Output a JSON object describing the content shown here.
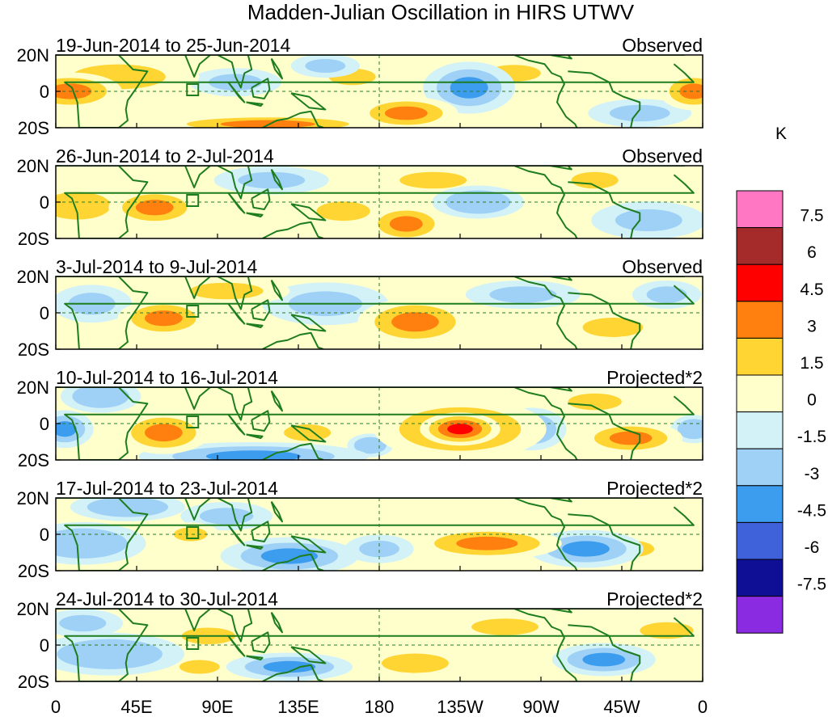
{
  "chart_data": {
    "type": "heatmap",
    "title": "Madden-Julian Oscillation in HIRS UTWV",
    "unit_label": "K",
    "x_ticks": [
      "0",
      "45E",
      "90E",
      "135E",
      "180",
      "135W",
      "90W",
      "45W",
      "0"
    ],
    "y_ticks": [
      "20N",
      "0",
      "20S"
    ],
    "xlim": [
      0,
      360
    ],
    "ylim": [
      -20,
      20
    ],
    "colorbar": {
      "labels": [
        "7.5",
        "6",
        "4.5",
        "3",
        "1.5",
        "0",
        "-1.5",
        "-3",
        "-4.5",
        "-6",
        "-7.5"
      ],
      "colors": [
        "#ff77c3",
        "#a52a2a",
        "#ff0000",
        "#ff7f0f",
        "#ffd533",
        "#ffffcc",
        "#d3f2f8",
        "#9fd1f7",
        "#3c9cee",
        "#3f62db",
        "#0f0f96",
        "#8a2be2"
      ]
    },
    "panels": [
      {
        "period": "19-Jun-2014 to 25-Jun-2014",
        "kind": "Observed",
        "blobs": [
          {
            "lon": 8,
            "lat": 0,
            "rx": 18,
            "ry": 8,
            "v": 4
          },
          {
            "lon": 35,
            "lat": 8,
            "rx": 28,
            "ry": 9,
            "v": 2.3
          },
          {
            "lon": 195,
            "lat": -12,
            "rx": 18,
            "ry": 7,
            "v": 4
          },
          {
            "lon": 118,
            "lat": -18,
            "rx": 40,
            "ry": 4,
            "v": 3.4
          },
          {
            "lon": 230,
            "lat": 2,
            "rx": 16,
            "ry": 11,
            "v": -3.8
          },
          {
            "lon": 255,
            "lat": 10,
            "rx": 16,
            "ry": 6,
            "v": 2.2
          },
          {
            "lon": 100,
            "lat": 5,
            "rx": 16,
            "ry": 6,
            "v": -2
          },
          {
            "lon": 150,
            "lat": 14,
            "rx": 12,
            "ry": 5,
            "v": -2.2
          },
          {
            "lon": 325,
            "lat": -12,
            "rx": 18,
            "ry": 6,
            "v": -2
          },
          {
            "lon": 355,
            "lat": 0,
            "rx": 12,
            "ry": 8,
            "v": 3.5
          },
          {
            "lon": 165,
            "lat": 8,
            "rx": 14,
            "ry": 6,
            "v": 2
          }
        ]
      },
      {
        "period": "26-Jun-2014 to 2-Jul-2014",
        "kind": "Observed",
        "blobs": [
          {
            "lon": 12,
            "lat": -2,
            "rx": 20,
            "ry": 10,
            "v": 2.4
          },
          {
            "lon": 55,
            "lat": -3,
            "rx": 16,
            "ry": 8,
            "v": 3.8
          },
          {
            "lon": 195,
            "lat": -12,
            "rx": 14,
            "ry": 8,
            "v": 4
          },
          {
            "lon": 235,
            "lat": 0,
            "rx": 16,
            "ry": 7,
            "v": -3
          },
          {
            "lon": 210,
            "lat": 12,
            "rx": 20,
            "ry": 6,
            "v": 2
          },
          {
            "lon": 330,
            "lat": -10,
            "rx": 20,
            "ry": 8,
            "v": -2
          },
          {
            "lon": 120,
            "lat": 12,
            "rx": 20,
            "ry": 6,
            "v": -1.8
          },
          {
            "lon": 160,
            "lat": -5,
            "rx": 16,
            "ry": 7,
            "v": 1.8
          },
          {
            "lon": 300,
            "lat": 12,
            "rx": 14,
            "ry": 6,
            "v": 1.8
          }
        ]
      },
      {
        "period": "3-Jul-2014 to 9-Jul-2014",
        "kind": "Observed",
        "blobs": [
          {
            "lon": 60,
            "lat": -3,
            "rx": 16,
            "ry": 8,
            "v": 3.6
          },
          {
            "lon": 200,
            "lat": -5,
            "rx": 20,
            "ry": 10,
            "v": 3.8
          },
          {
            "lon": 150,
            "lat": 5,
            "rx": 22,
            "ry": 9,
            "v": -2
          },
          {
            "lon": 95,
            "lat": 12,
            "rx": 22,
            "ry": 6,
            "v": 2
          },
          {
            "lon": 260,
            "lat": 10,
            "rx": 20,
            "ry": 6,
            "v": -2
          },
          {
            "lon": 310,
            "lat": -8,
            "rx": 18,
            "ry": 7,
            "v": 1.8
          },
          {
            "lon": 20,
            "lat": 5,
            "rx": 14,
            "ry": 8,
            "v": -1.8
          },
          {
            "lon": 340,
            "lat": 10,
            "rx": 12,
            "ry": 6,
            "v": -1.8
          }
        ]
      },
      {
        "period": "10-Jul-2014 to 16-Jul-2014",
        "kind": "Projected*2",
        "blobs": [
          {
            "lon": 60,
            "lat": -5,
            "rx": 16,
            "ry": 9,
            "v": 3.8
          },
          {
            "lon": 225,
            "lat": -3,
            "rx": 30,
            "ry": 13,
            "v": 4.2
          },
          {
            "lon": 225,
            "lat": -3,
            "rx": 14,
            "ry": 7,
            "v": 5.4
          },
          {
            "lon": 320,
            "lat": -8,
            "rx": 18,
            "ry": 7,
            "v": 3.4
          },
          {
            "lon": 265,
            "lat": -3,
            "rx": 12,
            "ry": 9,
            "v": -3
          },
          {
            "lon": 25,
            "lat": 15,
            "rx": 14,
            "ry": 7,
            "v": -3
          },
          {
            "lon": 5,
            "lat": -3,
            "rx": 10,
            "ry": 8,
            "v": -3.4
          },
          {
            "lon": 110,
            "lat": -18,
            "rx": 40,
            "ry": 6,
            "v": -3.6
          },
          {
            "lon": 175,
            "lat": -12,
            "rx": 8,
            "ry": 5,
            "v": -3
          },
          {
            "lon": 140,
            "lat": -5,
            "rx": 14,
            "ry": 6,
            "v": 2.5
          },
          {
            "lon": 300,
            "lat": 12,
            "rx": 16,
            "ry": 6,
            "v": 2
          },
          {
            "lon": 355,
            "lat": -3,
            "rx": 8,
            "ry": 6,
            "v": -3
          }
        ]
      },
      {
        "period": "17-Jul-2014 to 23-Jul-2014",
        "kind": "Projected*2",
        "blobs": [
          {
            "lon": 15,
            "lat": -5,
            "rx": 22,
            "ry": 9,
            "v": -3
          },
          {
            "lon": 130,
            "lat": -12,
            "rx": 24,
            "ry": 8,
            "v": -3.5
          },
          {
            "lon": 180,
            "lat": -8,
            "rx": 12,
            "ry": 6,
            "v": -2
          },
          {
            "lon": 240,
            "lat": -5,
            "rx": 26,
            "ry": 7,
            "v": 3.6
          },
          {
            "lon": 295,
            "lat": -8,
            "rx": 20,
            "ry": 8,
            "v": -3.2
          },
          {
            "lon": 40,
            "lat": 15,
            "rx": 20,
            "ry": 6,
            "v": -3
          },
          {
            "lon": 75,
            "lat": 0,
            "rx": 10,
            "ry": 5,
            "v": 2
          },
          {
            "lon": 320,
            "lat": -8,
            "rx": 14,
            "ry": 6,
            "v": 2
          },
          {
            "lon": 95,
            "lat": 10,
            "rx": 16,
            "ry": 6,
            "v": -1.8
          }
        ]
      },
      {
        "period": "24-Jul-2014 to 30-Jul-2014",
        "kind": "Projected*2",
        "blobs": [
          {
            "lon": 30,
            "lat": -5,
            "rx": 26,
            "ry": 9,
            "v": -3
          },
          {
            "lon": 130,
            "lat": -12,
            "rx": 22,
            "ry": 6,
            "v": -3.2
          },
          {
            "lon": 200,
            "lat": -10,
            "rx": 20,
            "ry": 7,
            "v": 2.4
          },
          {
            "lon": 250,
            "lat": 10,
            "rx": 20,
            "ry": 6,
            "v": 2
          },
          {
            "lon": 305,
            "lat": -8,
            "rx": 18,
            "ry": 7,
            "v": -3.6
          },
          {
            "lon": 85,
            "lat": 5,
            "rx": 16,
            "ry": 6,
            "v": 2
          },
          {
            "lon": 80,
            "lat": -12,
            "rx": 12,
            "ry": 5,
            "v": 2
          },
          {
            "lon": 15,
            "lat": 12,
            "rx": 14,
            "ry": 6,
            "v": -1.8
          },
          {
            "lon": 340,
            "lat": 8,
            "rx": 16,
            "ry": 6,
            "v": 1.8
          }
        ]
      }
    ]
  }
}
